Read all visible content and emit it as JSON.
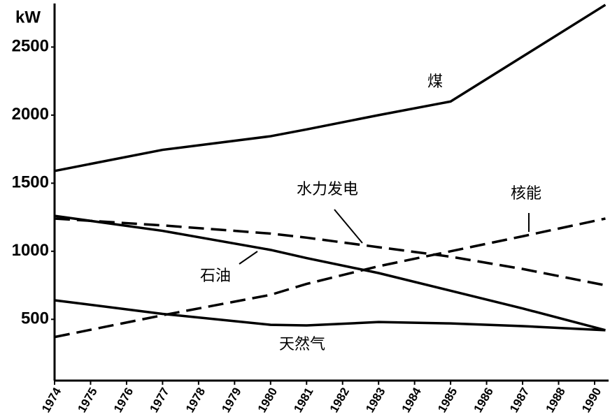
{
  "chart_data": {
    "type": "line",
    "y_label": "kW",
    "x": [
      1974,
      1977,
      1980,
      1981,
      1983,
      1985,
      1987,
      1989.3
    ],
    "xlim": [
      1974,
      1989.35
    ],
    "xticks": [
      {
        "value": 1974,
        "label": "1974"
      },
      {
        "value": 1975,
        "label": "1975"
      },
      {
        "value": 1976,
        "label": "1976"
      },
      {
        "value": 1977,
        "label": "1977"
      },
      {
        "value": 1978,
        "label": "1978"
      },
      {
        "value": 1979,
        "label": "1979"
      },
      {
        "value": 1980,
        "label": "1980"
      },
      {
        "value": 1981,
        "label": "1981"
      },
      {
        "value": 1982,
        "label": "1982"
      },
      {
        "value": 1983,
        "label": "1983"
      },
      {
        "value": 1984,
        "label": "1984"
      },
      {
        "value": 1985,
        "label": "1985"
      },
      {
        "value": 1986,
        "label": "1986"
      },
      {
        "value": 1987,
        "label": "1987"
      },
      {
        "value": 1988,
        "label": "1988"
      },
      {
        "value": 1989,
        "label": "1990"
      }
    ],
    "ylim": [
      50,
      2820
    ],
    "yticks": [
      500,
      1000,
      1500,
      2000,
      2500
    ],
    "series": [
      {
        "name": "煤",
        "color": "#000000",
        "dashed": false,
        "values": [
          1590,
          1745,
          1845,
          1895,
          2000,
          2100,
          2430,
          2810
        ]
      },
      {
        "name": "水力发电",
        "color": "#000000",
        "dashed": true,
        "values": [
          1240,
          1190,
          1130,
          1100,
          1030,
          960,
          870,
          750
        ]
      },
      {
        "name": "核能",
        "color": "#000000",
        "dashed": true,
        "values": [
          370,
          530,
          680,
          760,
          890,
          1000,
          1110,
          1240
        ]
      },
      {
        "name": "石油",
        "color": "#000000",
        "dashed": false,
        "values": [
          1260,
          1150,
          1010,
          950,
          840,
          710,
          580,
          420
        ]
      },
      {
        "name": "天然气",
        "color": "#000000",
        "dashed": false,
        "values": [
          640,
          540,
          460,
          455,
          480,
          470,
          450,
          420
        ]
      }
    ]
  }
}
